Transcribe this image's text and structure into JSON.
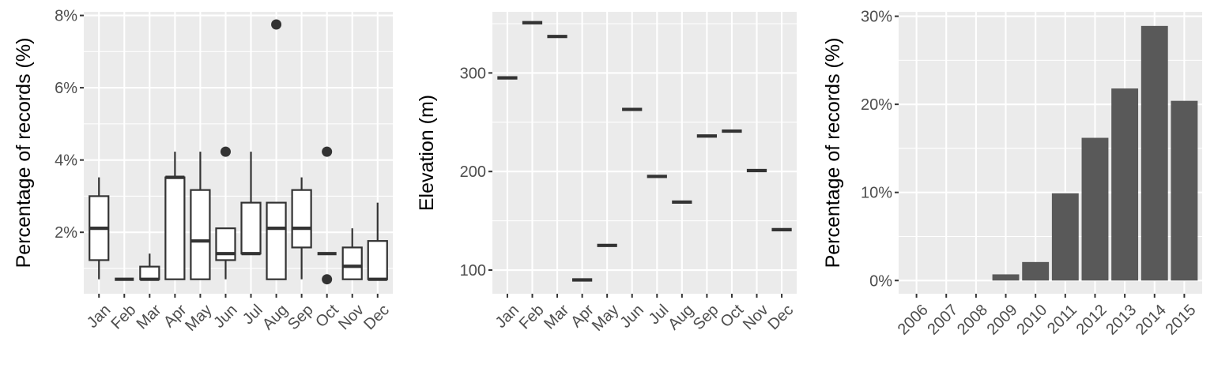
{
  "chart_data": [
    {
      "type": "boxplot",
      "title": "",
      "xlabel": "",
      "ylabel": "Percentage of records (%)",
      "ylim": [
        0.3,
        8.1
      ],
      "yticks": [
        2,
        4,
        6,
        8
      ],
      "ytick_labels": [
        "2%",
        "4%",
        "6%",
        "8%"
      ],
      "grid": true,
      "categories": [
        "Jan",
        "Feb",
        "Mar",
        "Apr",
        "May",
        "Jun",
        "Jul",
        "Aug",
        "Sep",
        "Oct",
        "Nov",
        "Dec"
      ],
      "boxes": [
        {
          "low": 0.7,
          "q1": 1.23,
          "median": 2.11,
          "q3": 3.0,
          "high": 3.52,
          "outliers": []
        },
        {
          "low": 0.7,
          "q1": 0.7,
          "median": 0.7,
          "q3": 0.7,
          "high": 0.7,
          "outliers": []
        },
        {
          "low": 0.7,
          "q1": 0.7,
          "median": 0.7,
          "q3": 1.05,
          "high": 1.41,
          "outliers": []
        },
        {
          "low": 0.7,
          "q1": 0.7,
          "median": 3.52,
          "q3": 3.52,
          "high": 4.23,
          "outliers": []
        },
        {
          "low": 0.7,
          "q1": 0.7,
          "median": 1.76,
          "q3": 3.17,
          "high": 4.23,
          "outliers": []
        },
        {
          "low": 0.7,
          "q1": 1.23,
          "median": 1.41,
          "q3": 2.11,
          "high": 2.11,
          "outliers": [
            4.23
          ]
        },
        {
          "low": 1.41,
          "q1": 1.41,
          "median": 1.41,
          "q3": 2.82,
          "high": 4.23,
          "outliers": []
        },
        {
          "low": 0.7,
          "q1": 0.7,
          "median": 2.11,
          "q3": 2.82,
          "high": 2.82,
          "outliers": [
            7.75
          ]
        },
        {
          "low": 0.7,
          "q1": 1.58,
          "median": 2.11,
          "q3": 3.17,
          "high": 3.52,
          "outliers": []
        },
        {
          "low": 1.41,
          "q1": 1.41,
          "median": 1.41,
          "q3": 1.41,
          "high": 1.41,
          "outliers": [
            4.23,
            0.7
          ]
        },
        {
          "low": 0.7,
          "q1": 0.7,
          "median": 1.06,
          "q3": 1.58,
          "high": 2.11,
          "outliers": []
        },
        {
          "low": 0.7,
          "q1": 0.7,
          "median": 0.7,
          "q3": 1.76,
          "high": 2.82,
          "outliers": []
        }
      ]
    },
    {
      "type": "scatter",
      "title": "",
      "xlabel": "",
      "ylabel": "Elevation (m)",
      "ylim": [
        76,
        362
      ],
      "yticks": [
        100,
        200,
        300
      ],
      "ytick_labels": [
        "100",
        "200",
        "300"
      ],
      "grid": true,
      "categories": [
        "Jan",
        "Feb",
        "Mar",
        "Apr",
        "May",
        "Jun",
        "Jul",
        "Aug",
        "Sep",
        "Oct",
        "Nov",
        "Dec"
      ],
      "values": [
        295,
        351,
        337,
        90,
        125,
        263,
        195,
        169,
        236,
        241,
        201,
        141
      ]
    },
    {
      "type": "bar",
      "title": "",
      "xlabel": "",
      "ylabel": "Percentage of records (%)",
      "ylim": [
        -1.5,
        30.5
      ],
      "yticks": [
        0,
        10,
        20,
        30
      ],
      "ytick_labels": [
        "0%",
        "10%",
        "20%",
        "30%"
      ],
      "grid": true,
      "categories": [
        "2006",
        "2007",
        "2008",
        "2009",
        "2010",
        "2011",
        "2012",
        "2013",
        "2014",
        "2015"
      ],
      "values": [
        0,
        0,
        0,
        0.7,
        2.1,
        9.9,
        16.2,
        21.8,
        28.9,
        20.4
      ]
    }
  ]
}
